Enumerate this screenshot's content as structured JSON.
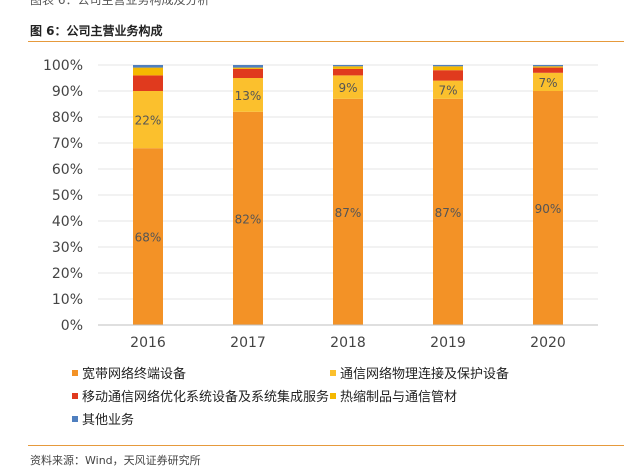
{
  "header": {
    "title": "图 6：公司主营业务构成"
  },
  "footer": {
    "source": "资料来源：Wind，天风证券研究所"
  },
  "colors": {
    "accent_rule": "#e69a3c"
  },
  "chart_data": {
    "type": "bar",
    "stacked": true,
    "title": "图 6：公司主营业务构成",
    "xlabel": "",
    "ylabel": "",
    "ylim": [
      0,
      100
    ],
    "yticks": [
      "0%",
      "10%",
      "20%",
      "30%",
      "40%",
      "50%",
      "60%",
      "70%",
      "80%",
      "90%",
      "100%"
    ],
    "categories": [
      "2016",
      "2017",
      "2018",
      "2019",
      "2020"
    ],
    "series": [
      {
        "name": "宽带网络终端设备",
        "color": "#f39226",
        "values": [
          68,
          82,
          87,
          87,
          90
        ],
        "labels": [
          "68%",
          "82%",
          "87%",
          "87%",
          "90%"
        ]
      },
      {
        "name": "通信网络物理连接及保护设备",
        "color": "#fbc02d",
        "values": [
          22,
          13,
          9,
          7,
          7
        ],
        "labels": [
          "22%",
          "13%",
          "9%",
          "7%",
          "7%"
        ]
      },
      {
        "name": "移动通信网络优化系统设备及系统集成服务",
        "color": "#e03a1e",
        "values": [
          6,
          3.5,
          2.5,
          4,
          2
        ],
        "labels": [
          "",
          "",
          "",
          "",
          ""
        ]
      },
      {
        "name": "热缩制品与通信管材",
        "color": "#f5b800",
        "values": [
          3,
          0.5,
          1,
          1.5,
          0.5
        ],
        "labels": [
          "",
          "",
          "",
          "",
          ""
        ]
      },
      {
        "name": "其他业务",
        "color": "#4f7fbf",
        "values": [
          1,
          1,
          0.5,
          0.5,
          0.5
        ],
        "labels": [
          "",
          "",
          "",
          "",
          ""
        ]
      }
    ],
    "legend_position": "bottom"
  }
}
